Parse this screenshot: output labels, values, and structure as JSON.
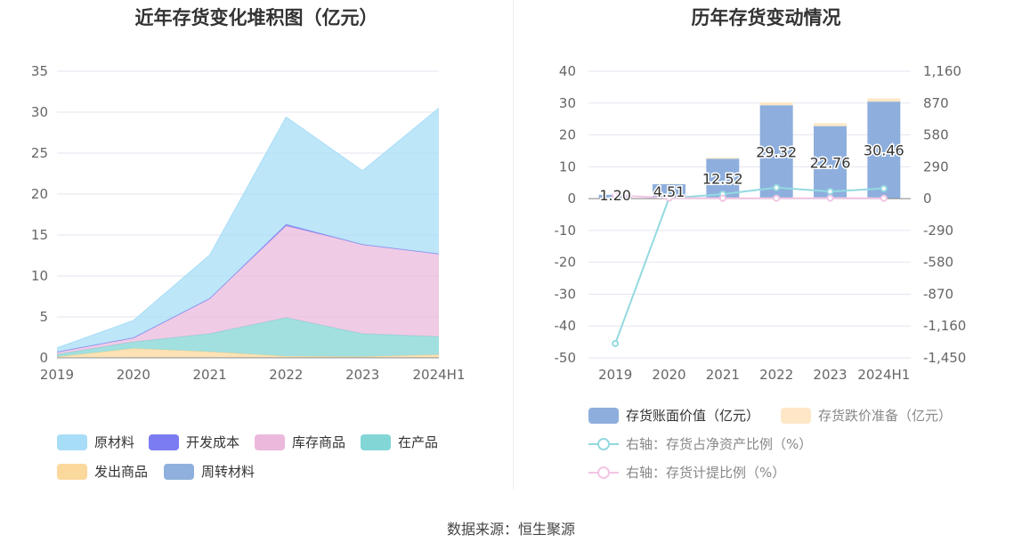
{
  "left_chart": {
    "title": "近年存货变化堆积图（亿元）",
    "legend": [
      {
        "label": "原材料",
        "color": "#a8ddf7"
      },
      {
        "label": "开发成本",
        "color": "#7b7cf2"
      },
      {
        "label": "库存商品",
        "color": "#ebb9dc"
      },
      {
        "label": "在产品",
        "color": "#83d6d6"
      },
      {
        "label": "发出商品",
        "color": "#fbd89c"
      },
      {
        "label": "周转材料",
        "color": "#8fb0dc"
      }
    ]
  },
  "right_chart": {
    "title": "历年存货变动情况",
    "legend": [
      {
        "label": "存货账面价值（亿元）",
        "color": "#8eafdd"
      },
      {
        "label": "存货跌价准备（亿元）",
        "color": "#fde7c6"
      },
      {
        "label": "右轴：存货占净资产比例（%）",
        "color": "#94d9e0"
      },
      {
        "label": "右轴：存货计提比例（%）",
        "color": "#f2c6e4"
      }
    ]
  },
  "source": "数据来源：恒生聚源",
  "chart_data": [
    {
      "type": "area",
      "stacked": true,
      "title": "近年存货变化堆积图（亿元）",
      "categories": [
        "2019",
        "2020",
        "2021",
        "2022",
        "2023",
        "2024H1"
      ],
      "ylim": [
        0,
        35
      ],
      "yticks": [
        0,
        5,
        10,
        15,
        20,
        25,
        30,
        35
      ],
      "grid": true,
      "legend_position": "bottom",
      "series": [
        {
          "name": "周转材料",
          "color": "#8fb0dc",
          "values": [
            0.02,
            0.05,
            0.05,
            0.05,
            0.05,
            0.05
          ]
        },
        {
          "name": "发出商品",
          "color": "#fbd89c",
          "values": [
            0.1,
            1.1,
            0.7,
            0.15,
            0.1,
            0.35
          ]
        },
        {
          "name": "在产品",
          "color": "#83d6d6",
          "values": [
            0.3,
            0.8,
            2.2,
            4.7,
            2.8,
            2.2
          ]
        },
        {
          "name": "库存商品",
          "color": "#ebb9dc",
          "values": [
            0.3,
            0.5,
            4.3,
            11.2,
            10.9,
            10.1
          ]
        },
        {
          "name": "开发成本",
          "color": "#7b7cf2",
          "values": [
            0,
            0,
            0,
            0.2,
            0,
            0
          ]
        },
        {
          "name": "原材料",
          "color": "#a8ddf7",
          "values": [
            0.5,
            2.1,
            5.3,
            13.1,
            9.0,
            17.8
          ]
        }
      ]
    },
    {
      "type": "bar",
      "stacked": true,
      "title": "历年存货变动情况",
      "categories": [
        "2019",
        "2020",
        "2021",
        "2022",
        "2023",
        "2024H1"
      ],
      "ylim": [
        -50,
        40
      ],
      "yticks": [
        -50,
        -40,
        -30,
        -20,
        -10,
        0,
        10,
        20,
        30,
        40
      ],
      "y2lim": [
        -1450,
        1160
      ],
      "y2ticks": [
        "-1,450",
        "-1,160",
        "-870",
        "-580",
        "-290",
        "0",
        "290",
        "580",
        "870",
        "1,160"
      ],
      "grid": true,
      "legend_position": "bottom",
      "series": [
        {
          "name": "存货账面价值（亿元）",
          "color": "#8eafdd",
          "values": [
            1.2,
            4.51,
            12.52,
            29.32,
            22.76,
            30.46
          ],
          "labels": [
            "1.20",
            "4.51",
            "12.52",
            "29.32",
            "22.76",
            "30.46"
          ]
        },
        {
          "name": "存货跌价准备（亿元）",
          "color": "#fde7c6",
          "values": [
            0.02,
            0.1,
            0.3,
            0.9,
            0.9,
            1.0
          ]
        },
        {
          "name": "右轴：存货占净资产比例（%）",
          "color": "#94d9e0",
          "axis": "right",
          "values": [
            -1320,
            4,
            40,
            100,
            65,
            92
          ]
        },
        {
          "name": "右轴：存货计提比例（%）",
          "color": "#f2c6e4",
          "axis": "right",
          "values": [
            30,
            5,
            3,
            3,
            4,
            3
          ]
        }
      ]
    }
  ]
}
